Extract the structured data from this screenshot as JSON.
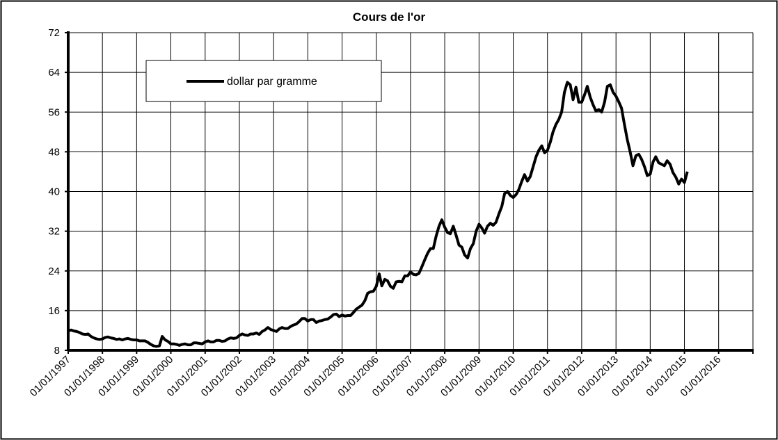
{
  "chart_data": {
    "type": "line",
    "title": "Cours de l'or",
    "x": [
      "01/01/1997",
      "01/02/1997",
      "01/03/1997",
      "01/04/1997",
      "01/05/1997",
      "01/06/1997",
      "01/07/1997",
      "01/08/1997",
      "01/09/1997",
      "01/10/1997",
      "01/11/1997",
      "01/12/1997",
      "01/01/1998",
      "01/02/1998",
      "01/03/1998",
      "01/04/1998",
      "01/05/1998",
      "01/06/1998",
      "01/07/1998",
      "01/08/1998",
      "01/09/1998",
      "01/10/1998",
      "01/11/1998",
      "01/12/1998",
      "01/01/1999",
      "01/02/1999",
      "01/03/1999",
      "01/04/1999",
      "01/05/1999",
      "01/06/1999",
      "01/07/1999",
      "01/08/1999",
      "01/09/1999",
      "01/10/1999",
      "01/11/1999",
      "01/12/1999",
      "01/01/2000",
      "01/02/2000",
      "01/03/2000",
      "01/04/2000",
      "01/05/2000",
      "01/06/2000",
      "01/07/2000",
      "01/08/2000",
      "01/09/2000",
      "01/10/2000",
      "01/11/2000",
      "01/12/2000",
      "01/01/2001",
      "01/02/2001",
      "01/03/2001",
      "01/04/2001",
      "01/05/2001",
      "01/06/2001",
      "01/07/2001",
      "01/08/2001",
      "01/09/2001",
      "01/10/2001",
      "01/11/2001",
      "01/12/2001",
      "01/01/2002",
      "01/02/2002",
      "01/03/2002",
      "01/04/2002",
      "01/05/2002",
      "01/06/2002",
      "01/07/2002",
      "01/08/2002",
      "01/09/2002",
      "01/10/2002",
      "01/11/2002",
      "01/12/2002",
      "01/01/2003",
      "01/02/2003",
      "01/03/2003",
      "01/04/2003",
      "01/05/2003",
      "01/06/2003",
      "01/07/2003",
      "01/08/2003",
      "01/09/2003",
      "01/10/2003",
      "01/11/2003",
      "01/12/2003",
      "01/01/2004",
      "01/02/2004",
      "01/03/2004",
      "01/04/2004",
      "01/05/2004",
      "01/06/2004",
      "01/07/2004",
      "01/08/2004",
      "01/09/2004",
      "01/10/2004",
      "01/11/2004",
      "01/12/2004",
      "01/01/2005",
      "01/02/2005",
      "01/03/2005",
      "01/04/2005",
      "01/05/2005",
      "01/06/2005",
      "01/07/2005",
      "01/08/2005",
      "01/09/2005",
      "01/10/2005",
      "01/11/2005",
      "01/12/2005",
      "01/01/2006",
      "01/02/2006",
      "01/03/2006",
      "01/04/2006",
      "01/05/2006",
      "01/06/2006",
      "01/07/2006",
      "01/08/2006",
      "01/09/2006",
      "01/10/2006",
      "01/11/2006",
      "01/12/2006",
      "01/01/2007",
      "01/02/2007",
      "01/03/2007",
      "01/04/2007",
      "01/05/2007",
      "01/06/2007",
      "01/07/2007",
      "01/08/2007",
      "01/09/2007",
      "01/10/2007",
      "01/11/2007",
      "01/12/2007",
      "01/01/2008",
      "01/02/2008",
      "01/03/2008",
      "01/04/2008",
      "01/05/2008",
      "01/06/2008",
      "01/07/2008",
      "01/08/2008",
      "01/09/2008",
      "01/10/2008",
      "01/11/2008",
      "01/12/2008",
      "01/01/2009",
      "01/02/2009",
      "01/03/2009",
      "01/04/2009",
      "01/05/2009",
      "01/06/2009",
      "01/07/2009",
      "01/08/2009",
      "01/09/2009",
      "01/10/2009",
      "01/11/2009",
      "01/12/2009",
      "01/01/2010",
      "01/02/2010",
      "01/03/2010",
      "01/04/2010",
      "01/05/2010",
      "01/06/2010",
      "01/07/2010",
      "01/08/2010",
      "01/09/2010",
      "01/10/2010",
      "01/11/2010",
      "01/12/2010",
      "01/01/2011",
      "01/02/2011",
      "01/03/2011",
      "01/04/2011",
      "01/05/2011",
      "01/06/2011",
      "01/07/2011",
      "01/08/2011",
      "01/09/2011",
      "01/10/2011",
      "01/11/2011",
      "01/12/2011",
      "01/01/2012",
      "01/02/2012",
      "01/03/2012",
      "01/04/2012",
      "01/05/2012",
      "01/06/2012",
      "01/07/2012",
      "01/08/2012",
      "01/09/2012",
      "01/10/2012",
      "01/11/2012",
      "01/12/2012",
      "01/01/2013",
      "01/02/2013",
      "01/03/2013",
      "01/04/2013",
      "01/05/2013",
      "01/06/2013",
      "01/07/2013",
      "01/08/2013",
      "01/09/2013",
      "01/10/2013",
      "01/11/2013",
      "01/12/2013",
      "01/01/2014",
      "01/02/2014",
      "01/03/2014",
      "01/04/2014",
      "01/05/2014",
      "01/06/2014",
      "01/07/2014",
      "01/08/2014",
      "01/09/2014",
      "01/10/2014",
      "01/11/2014",
      "01/12/2014",
      "01/01/2015",
      "01/02/2015"
    ],
    "series": [
      {
        "name": "dollar par gramme",
        "color": "#000000",
        "values": [
          11.9,
          12.1,
          11.9,
          11.8,
          11.6,
          11.3,
          11.2,
          11.3,
          10.8,
          10.5,
          10.3,
          10.2,
          10.3,
          10.6,
          10.7,
          10.5,
          10.4,
          10.2,
          10.3,
          10.1,
          10.3,
          10.4,
          10.2,
          10.1,
          10.1,
          9.9,
          9.9,
          9.9,
          9.6,
          9.2,
          8.9,
          8.8,
          8.9,
          10.8,
          10.1,
          9.8,
          9.3,
          9.3,
          9.2,
          9.0,
          9.2,
          9.3,
          9.1,
          9.1,
          9.5,
          9.5,
          9.4,
          9.3,
          9.7,
          9.9,
          9.7,
          9.7,
          10.0,
          10.0,
          9.8,
          9.9,
          10.3,
          10.5,
          10.4,
          10.5,
          11.0,
          11.3,
          11.1,
          11.0,
          11.3,
          11.3,
          11.5,
          11.2,
          11.8,
          12.1,
          12.6,
          12.2,
          12.0,
          11.8,
          12.3,
          12.6,
          12.4,
          12.4,
          12.8,
          13.1,
          13.3,
          13.8,
          14.4,
          14.4,
          13.9,
          14.2,
          14.2,
          13.6,
          13.9,
          14.0,
          14.2,
          14.3,
          14.7,
          15.2,
          15.3,
          14.8,
          15.1,
          14.9,
          15.0,
          15.0,
          15.6,
          16.3,
          16.7,
          17.1,
          18.0,
          19.5,
          19.8,
          19.9,
          20.9,
          23.4,
          21.0,
          22.3,
          22.0,
          20.9,
          20.5,
          21.8,
          21.9,
          21.8,
          23.0,
          23.0,
          23.8,
          23.3,
          23.2,
          23.5,
          24.8,
          26.2,
          27.5,
          28.5,
          28.5,
          31.0,
          33.0,
          34.3,
          32.8,
          31.7,
          31.5,
          33.0,
          31.2,
          29.2,
          28.8,
          27.2,
          26.6,
          28.5,
          29.5,
          32.0,
          33.4,
          32.6,
          31.6,
          33.0,
          33.6,
          33.2,
          33.8,
          35.5,
          37.0,
          39.6,
          40.0,
          39.2,
          38.8,
          39.4,
          40.4,
          42.0,
          43.4,
          42.1,
          43.0,
          45.0,
          47.0,
          48.3,
          49.2,
          47.8,
          48.3,
          50.0,
          52.0,
          53.5,
          54.5,
          56.0,
          60.0,
          62.0,
          61.5,
          58.5,
          61.0,
          58.0,
          58.0,
          59.5,
          61.2,
          59.0,
          57.5,
          56.2,
          56.5,
          56.0,
          58.0,
          61.2,
          61.5,
          60.0,
          59.2,
          58.0,
          56.8,
          53.5,
          50.5,
          48.0,
          45.2,
          47.2,
          47.5,
          46.5,
          45.0,
          43.2,
          43.5,
          46.0,
          47.0,
          45.8,
          45.5,
          45.2,
          46.2,
          45.5,
          43.8,
          42.9,
          41.5,
          42.5,
          41.8,
          44.0
        ]
      }
    ],
    "xlim": [
      "01/01/1997",
      "01/01/2017"
    ],
    "xticks": [
      "01/01/1997",
      "01/01/1998",
      "01/01/1999",
      "01/01/2000",
      "01/01/2001",
      "01/01/2002",
      "01/01/2003",
      "01/01/2004",
      "01/01/2005",
      "01/01/2006",
      "01/01/2007",
      "01/01/2008",
      "01/01/2009",
      "01/01/2010",
      "01/01/2011",
      "01/01/2012",
      "01/01/2013",
      "01/01/2014",
      "01/01/2015",
      "01/01/2016"
    ],
    "ylim": [
      8,
      72
    ],
    "yticks": [
      8,
      16,
      24,
      32,
      40,
      48,
      56,
      64,
      72
    ],
    "grid": true,
    "legend": "upper left"
  }
}
